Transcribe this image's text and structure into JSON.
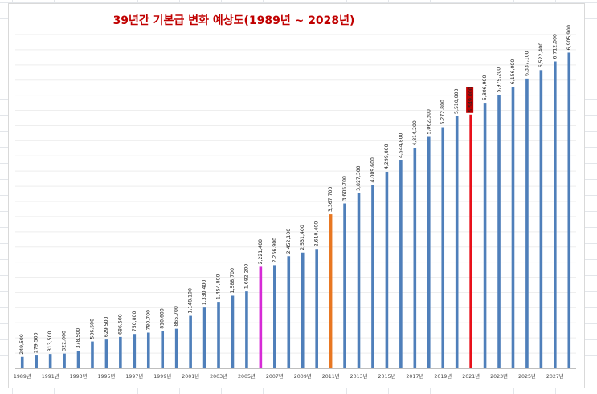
{
  "chart_data": {
    "type": "bar",
    "title": "39년간 기본급 변화 예상도(1989년 ~ 2028년)",
    "xlabel": "",
    "ylabel": "",
    "ylim": [
      0,
      7300000
    ],
    "grid": true,
    "legend": "none",
    "categories": [
      "1989년",
      "1990년",
      "1991년",
      "1992년",
      "1993년",
      "1994년",
      "1995년",
      "1996년",
      "1997년",
      "1998년",
      "1999년",
      "2000년",
      "2001년",
      "2002년",
      "2003년",
      "2004년",
      "2005년",
      "2006년",
      "2007년",
      "2008년",
      "2009년",
      "2010년",
      "2011년",
      "2012년",
      "2013년",
      "2014년",
      "2015년",
      "2016년",
      "2017년",
      "2018년",
      "2019년",
      "2020년",
      "2021년",
      "2022년",
      "2023년",
      "2024년",
      "2025년",
      "2026년",
      "2027년",
      "2028년"
    ],
    "x_tick_labels": [
      "1989년",
      "",
      "1991년",
      "",
      "1993년",
      "",
      "1995년",
      "",
      "1997년",
      "",
      "1999년",
      "",
      "2001년",
      "",
      "2003년",
      "",
      "2005년",
      "",
      "2007년",
      "",
      "2009년",
      "",
      "2011년",
      "",
      "2013년",
      "",
      "2015년",
      "",
      "2017년",
      "",
      "2019년",
      "",
      "2021년",
      "",
      "2023년",
      "",
      "2025년",
      "",
      "2027년",
      ""
    ],
    "values": [
      249500,
      279500,
      313500,
      322000,
      378500,
      586500,
      629500,
      686500,
      750800,
      780700,
      810600,
      865700,
      1148100,
      1330400,
      1454800,
      1588700,
      1682200,
      2221400,
      2256900,
      2452100,
      2531400,
      2610400,
      3367700,
      3605700,
      3827300,
      4009600,
      4299800,
      4544800,
      4814200,
      5062300,
      5272800,
      5510800,
      5549000,
      5806900,
      5979200,
      6156000,
      6337100,
      6522400,
      6712000,
      6905900
    ],
    "value_labels": [
      "249,500",
      "279,500",
      "313,500",
      "322,000",
      "378,500",
      "586,500",
      "629,500",
      "686,500",
      "750,800",
      "780,700",
      "810,600",
      "865,700",
      "1,148,100",
      "1,330,400",
      "1,454,800",
      "1,588,700",
      "1,682,200",
      "2,221,400",
      "2,256,900",
      "2,452,100",
      "2,531,400",
      "2,610,400",
      "3,367,700",
      "3,605,700",
      "3,827,300",
      "4,009,600",
      "4,299,800",
      "4,544,800",
      "4,814,200",
      "5,062,300",
      "5,272,800",
      "5,510,800",
      "5,549,000",
      "5,806,900",
      "5,979,200",
      "6,156,000",
      "6,337,100",
      "6,522,400",
      "6,712,000",
      "6,905,900"
    ],
    "bar_colors": {
      "default": "#4f7fba",
      "highlights": {
        "2006년": "#d62ad6",
        "2011년": "#e87722",
        "2021년": "#e8101a"
      }
    },
    "boxed_label": {
      "category": "2021년",
      "background": "#c00000"
    }
  }
}
